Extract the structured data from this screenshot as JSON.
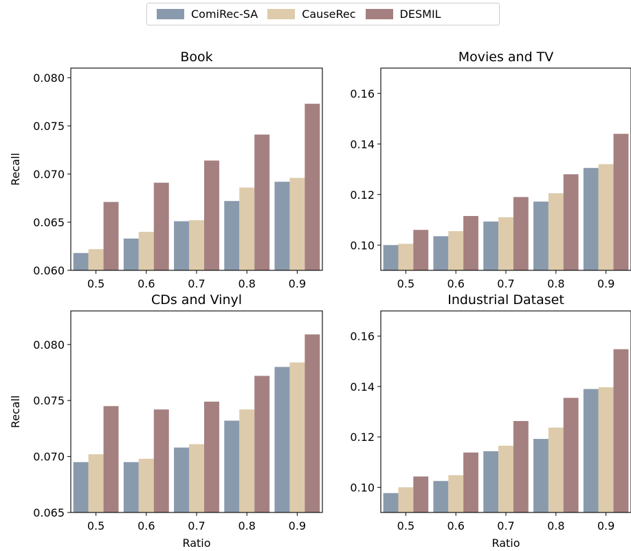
{
  "legend": [
    {
      "name": "ComiRec-SA",
      "color": "#8a9aad"
    },
    {
      "name": "CauseRec",
      "color": "#ddcbab"
    },
    {
      "name": "DESMIL",
      "color": "#a58080"
    }
  ],
  "chart_data": [
    {
      "type": "bar",
      "title": "Book",
      "ylabel": "Recall",
      "xlabel": "",
      "categories": [
        "0.5",
        "0.6",
        "0.7",
        "0.8",
        "0.9"
      ],
      "ylim": [
        0.06,
        0.081
      ],
      "yticks": [
        "0.060",
        "0.065",
        "0.070",
        "0.075",
        "0.080"
      ],
      "series": [
        {
          "name": "ComiRec-SA",
          "values": [
            0.0618,
            0.0633,
            0.0651,
            0.0672,
            0.0692
          ]
        },
        {
          "name": "CauseRec",
          "values": [
            0.0622,
            0.064,
            0.0652,
            0.0686,
            0.0696
          ]
        },
        {
          "name": "DESMIL",
          "values": [
            0.0671,
            0.0691,
            0.0714,
            0.0741,
            0.0773
          ]
        }
      ]
    },
    {
      "type": "bar",
      "title": "Movies and TV",
      "ylabel": "",
      "xlabel": "",
      "categories": [
        "0.5",
        "0.6",
        "0.7",
        "0.8",
        "0.9"
      ],
      "ylim": [
        0.09,
        0.17
      ],
      "yticks": [
        "0.10",
        "0.12",
        "0.14",
        "0.16"
      ],
      "series": [
        {
          "name": "ComiRec-SA",
          "values": [
            0.1,
            0.1035,
            0.1093,
            0.1172,
            0.1305
          ]
        },
        {
          "name": "CauseRec",
          "values": [
            0.1005,
            0.1055,
            0.111,
            0.1205,
            0.132
          ]
        },
        {
          "name": "DESMIL",
          "values": [
            0.106,
            0.1115,
            0.119,
            0.128,
            0.144
          ]
        }
      ]
    },
    {
      "type": "bar",
      "title": "CDs and Vinyl",
      "ylabel": "Recall",
      "xlabel": "Ratio",
      "categories": [
        "0.5",
        "0.6",
        "0.7",
        "0.8",
        "0.9"
      ],
      "ylim": [
        0.065,
        0.083
      ],
      "yticks": [
        "0.065",
        "0.070",
        "0.075",
        "0.080"
      ],
      "series": [
        {
          "name": "ComiRec-SA",
          "values": [
            0.0695,
            0.0695,
            0.0708,
            0.0732,
            0.078
          ]
        },
        {
          "name": "CauseRec",
          "values": [
            0.0702,
            0.0698,
            0.0711,
            0.0742,
            0.0784
          ]
        },
        {
          "name": "DESMIL",
          "values": [
            0.0745,
            0.0742,
            0.0749,
            0.0772,
            0.0809
          ]
        }
      ]
    },
    {
      "type": "bar",
      "title": "Industrial Dataset",
      "ylabel": "",
      "xlabel": "Ratio",
      "categories": [
        "0.5",
        "0.6",
        "0.7",
        "0.8",
        "0.9"
      ],
      "ylim": [
        0.09,
        0.17
      ],
      "yticks": [
        "0.10",
        "0.12",
        "0.14",
        "0.16"
      ],
      "series": [
        {
          "name": "ComiRec-SA",
          "values": [
            0.0977,
            0.1025,
            0.1143,
            0.1192,
            0.139
          ]
        },
        {
          "name": "CauseRec",
          "values": [
            0.1,
            0.1048,
            0.1165,
            0.1237,
            0.1397
          ]
        },
        {
          "name": "DESMIL",
          "values": [
            0.1043,
            0.1138,
            0.1263,
            0.1355,
            0.1548
          ]
        }
      ]
    }
  ]
}
